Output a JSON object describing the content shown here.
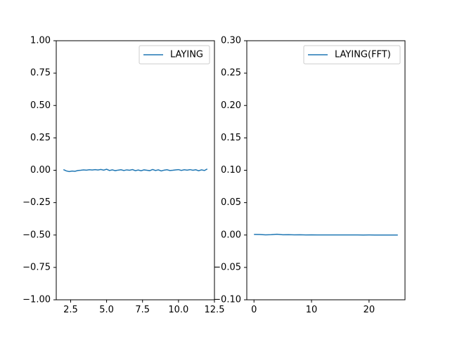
{
  "chart_data": [
    {
      "type": "line",
      "series": [
        {
          "name": "LAYING",
          "color": "#1f77b4",
          "x": [
            2.0,
            2.2,
            2.4,
            2.6,
            2.8,
            3.0,
            3.2,
            3.4,
            3.6,
            3.8,
            4.0,
            4.2,
            4.4,
            4.6,
            4.8,
            5.0,
            5.2,
            5.4,
            5.6,
            5.8,
            6.0,
            6.2,
            6.4,
            6.6,
            6.8,
            7.0,
            7.2,
            7.4,
            7.6,
            7.8,
            8.0,
            8.2,
            8.4,
            8.6,
            8.8,
            9.0,
            9.2,
            9.4,
            9.6,
            9.8,
            10.0,
            10.2,
            10.4,
            10.6,
            10.8,
            11.0,
            11.2,
            11.4,
            11.6,
            11.8,
            12.0
          ],
          "y": [
            0.005,
            -0.005,
            -0.01,
            -0.006,
            -0.008,
            -0.002,
            0.0,
            0.003,
            0.001,
            0.004,
            0.002,
            0.005,
            0.002,
            0.006,
            0.001,
            0.008,
            -0.002,
            0.003,
            -0.003,
            0.001,
            0.004,
            -0.002,
            0.003,
            0.0,
            0.005,
            -0.003,
            0.002,
            -0.004,
            0.003,
            0.0,
            -0.003,
            0.006,
            -0.002,
            0.003,
            -0.005,
            0.001,
            0.004,
            -0.002,
            0.0,
            0.003,
            0.005,
            -0.001,
            0.004,
            0.001,
            0.005,
            0.0,
            0.004,
            -0.004,
            0.003,
            -0.002,
            0.01
          ]
        }
      ],
      "xlim": [
        1.5,
        12.5
      ],
      "ylim": [
        -1.0,
        1.0
      ],
      "xticks": [
        2.5,
        5.0,
        7.5,
        10.0,
        12.5
      ],
      "xtick_labels": [
        "2.5",
        "5.0",
        "7.5",
        "10.0",
        "12.5"
      ],
      "yticks": [
        -1.0,
        -0.75,
        -0.5,
        -0.25,
        0.0,
        0.25,
        0.5,
        0.75,
        1.0
      ],
      "ytick_labels": [
        "−1.00",
        "−0.75",
        "−0.50",
        "−0.25",
        "0.00",
        "0.25",
        "0.50",
        "0.75",
        "1.00"
      ],
      "grid": false,
      "legend_position": "top-right"
    },
    {
      "type": "line",
      "series": [
        {
          "name": "LAYING(FFT)",
          "color": "#1f77b4",
          "x": [
            0,
            1,
            2,
            3,
            4,
            5,
            6,
            7,
            8,
            9,
            10,
            11,
            12,
            13,
            14,
            15,
            16,
            17,
            18,
            19,
            20,
            21,
            22,
            23,
            24,
            25
          ],
          "y": [
            0.001,
            0.0008,
            0.0003,
            0.0005,
            0.0012,
            0.0004,
            0.0006,
            0.0003,
            0.0004,
            0.0002,
            0.0003,
            0.0002,
            0.0002,
            0.0001,
            0.0002,
            0.0001,
            0.0001,
            0.0001,
            0.0001,
            0.0,
            0.0001,
            0.0,
            0.0,
            0.0,
            0.0,
            0.0
          ]
        }
      ],
      "xlim": [
        -1.25,
        26.25
      ],
      "ylim": [
        -0.1,
        0.3
      ],
      "xticks": [
        0,
        10,
        20
      ],
      "xtick_labels": [
        "0",
        "10",
        "20"
      ],
      "yticks": [
        -0.1,
        -0.05,
        0.0,
        0.05,
        0.1,
        0.15,
        0.2,
        0.25,
        0.3
      ],
      "ytick_labels": [
        "−0.10",
        "−0.05",
        "0.00",
        "0.05",
        "0.10",
        "0.15",
        "0.20",
        "0.25",
        "0.30"
      ],
      "grid": false,
      "legend_position": "top-right"
    }
  ]
}
